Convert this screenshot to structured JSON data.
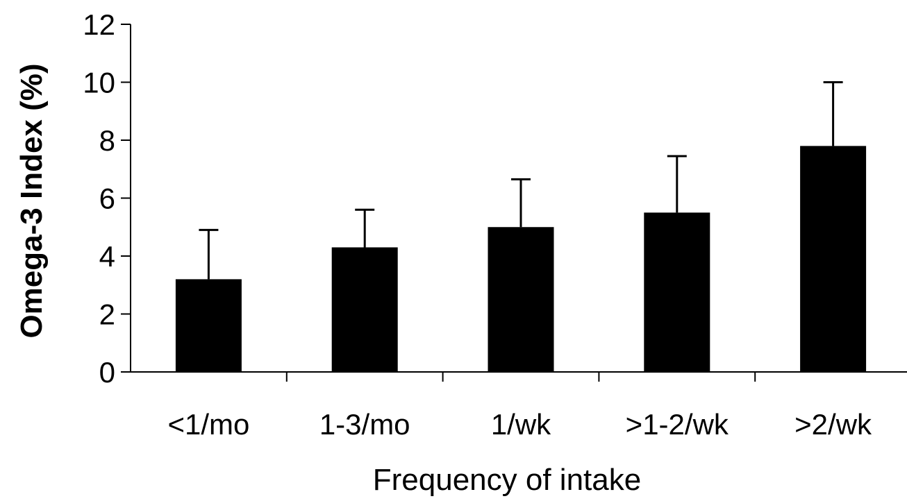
{
  "chart_data": {
    "type": "bar",
    "title": "",
    "xlabel": "Frequency of intake",
    "ylabel": "Omega-3 Index (%)",
    "categories": [
      "<1/mo",
      "1-3/mo",
      "1/wk",
      ">1-2/wk",
      ">2/wk"
    ],
    "values": [
      3.2,
      4.3,
      5.0,
      5.5,
      7.8
    ],
    "error_upper": [
      4.9,
      5.6,
      6.65,
      7.45,
      10.0
    ],
    "ylim": [
      0,
      12
    ],
    "yticks": [
      "0",
      "2",
      "4",
      "6",
      "8",
      "10",
      "12"
    ],
    "bar_color": "#000000",
    "grid": false,
    "legend": "none"
  }
}
